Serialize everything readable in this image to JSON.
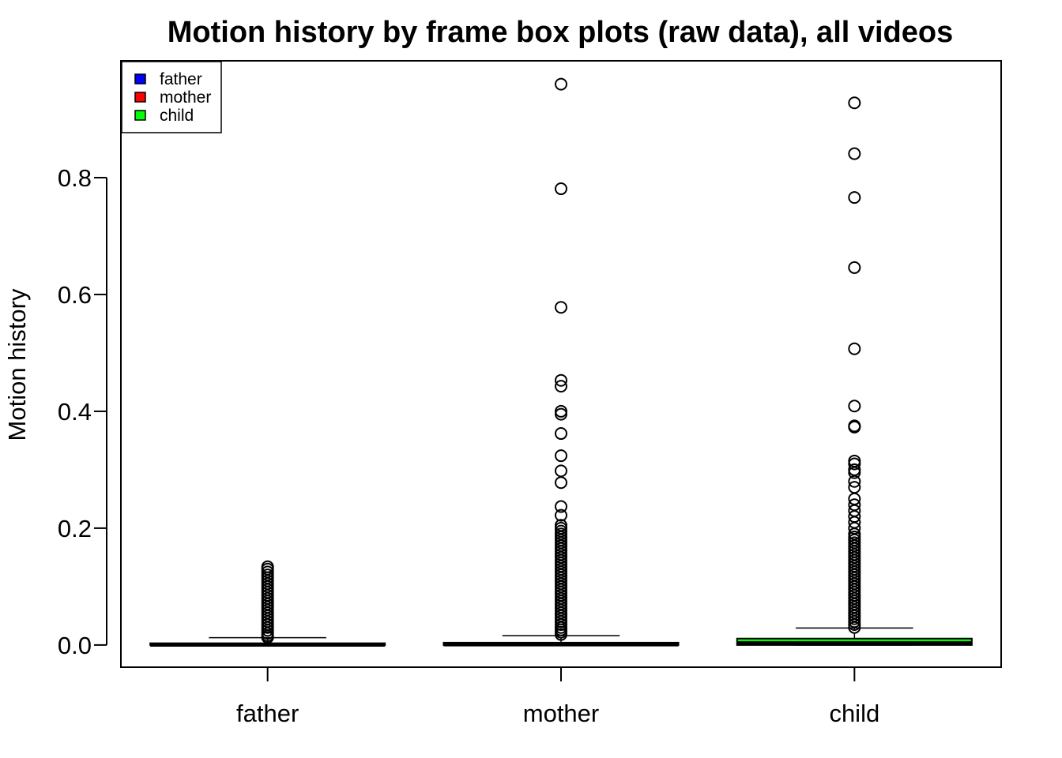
{
  "chart_data": {
    "type": "boxplot",
    "title": "Motion history by frame box plots (raw data), all videos",
    "xlabel": "",
    "ylabel": "Motion history",
    "categories": [
      "father",
      "mother",
      "child"
    ],
    "ylim": [
      -0.038,
      1.0
    ],
    "yticks": [
      "0.0",
      "0.2",
      "0.4",
      "0.6",
      "0.8"
    ],
    "grid": false,
    "legend": {
      "position": "top-left",
      "entries": [
        {
          "label": "father",
          "color": "#0000ff"
        },
        {
          "label": "mother",
          "color": "#ff0000"
        },
        {
          "label": "child",
          "color": "#00ff00"
        }
      ]
    },
    "boxes": [
      {
        "name": "father",
        "color": "#0000ff",
        "whisker_low": 0.0,
        "q1": 0.0,
        "median": 0.0005,
        "q3": 0.003,
        "whisker_high": 0.0125,
        "outliers": [
          0.013,
          0.016,
          0.02,
          0.025,
          0.03,
          0.035,
          0.04,
          0.045,
          0.05,
          0.055,
          0.06,
          0.065,
          0.07,
          0.075,
          0.08,
          0.085,
          0.09,
          0.095,
          0.1,
          0.105,
          0.11,
          0.115,
          0.12,
          0.125,
          0.13,
          0.134
        ]
      },
      {
        "name": "mother",
        "color": "#ff0000",
        "whisker_low": 0.0,
        "q1": 0.0,
        "median": 0.001,
        "q3": 0.004,
        "whisker_high": 0.016,
        "outliers": [
          0.018,
          0.022,
          0.026,
          0.03,
          0.035,
          0.04,
          0.045,
          0.05,
          0.055,
          0.06,
          0.065,
          0.07,
          0.075,
          0.08,
          0.085,
          0.09,
          0.095,
          0.1,
          0.105,
          0.11,
          0.115,
          0.12,
          0.125,
          0.13,
          0.135,
          0.14,
          0.145,
          0.15,
          0.155,
          0.16,
          0.165,
          0.17,
          0.175,
          0.18,
          0.185,
          0.19,
          0.195,
          0.2,
          0.205,
          0.222,
          0.237,
          0.278,
          0.298,
          0.324,
          0.362,
          0.395,
          0.4,
          0.443,
          0.453,
          0.578,
          0.781,
          0.96
        ]
      },
      {
        "name": "child",
        "color": "#00ff00",
        "whisker_low": 0.0,
        "q1": 0.0,
        "median": 0.003,
        "q3": 0.011,
        "whisker_high": 0.029,
        "outliers": [
          0.03,
          0.035,
          0.04,
          0.045,
          0.05,
          0.055,
          0.06,
          0.065,
          0.07,
          0.075,
          0.08,
          0.085,
          0.09,
          0.095,
          0.1,
          0.105,
          0.11,
          0.115,
          0.12,
          0.125,
          0.13,
          0.135,
          0.14,
          0.145,
          0.15,
          0.155,
          0.16,
          0.165,
          0.17,
          0.175,
          0.18,
          0.185,
          0.19,
          0.2,
          0.21,
          0.22,
          0.23,
          0.24,
          0.25,
          0.27,
          0.28,
          0.295,
          0.3,
          0.31,
          0.315,
          0.373,
          0.375,
          0.409,
          0.507,
          0.646,
          0.766,
          0.841,
          0.928
        ]
      }
    ]
  }
}
